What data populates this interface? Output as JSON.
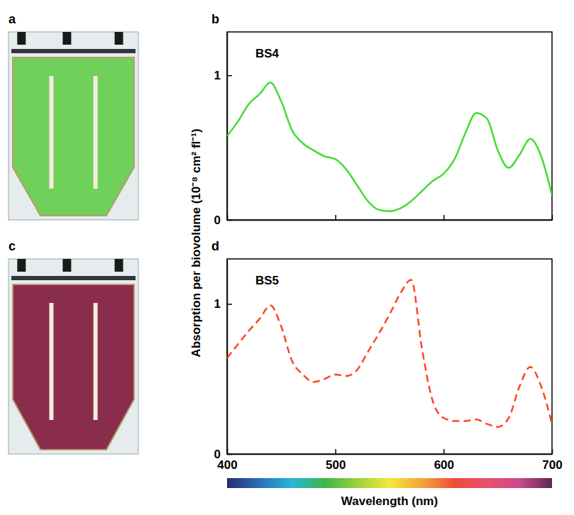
{
  "chart_data": [
    {
      "type": "line",
      "label": "b",
      "x": [
        400,
        410,
        420,
        430,
        440,
        450,
        460,
        470,
        480,
        490,
        500,
        510,
        520,
        530,
        540,
        550,
        560,
        570,
        580,
        590,
        600,
        610,
        620,
        630,
        640,
        650,
        660,
        670,
        680,
        690,
        700
      ],
      "series": [
        {
          "name": "BS4",
          "color": "#44dd33",
          "line_style": "solid",
          "values": [
            0.58,
            0.68,
            0.8,
            0.87,
            0.95,
            0.82,
            0.62,
            0.53,
            0.48,
            0.44,
            0.42,
            0.35,
            0.24,
            0.13,
            0.07,
            0.06,
            0.08,
            0.13,
            0.2,
            0.27,
            0.32,
            0.42,
            0.6,
            0.74,
            0.7,
            0.48,
            0.36,
            0.45,
            0.56,
            0.44,
            0.17
          ]
        }
      ],
      "xlim": [
        400,
        700
      ],
      "xticks": [
        400,
        500,
        600,
        700
      ],
      "ylim": [
        0,
        1.3
      ],
      "yticks": [
        0,
        1
      ],
      "tick_labels": "y"
    },
    {
      "type": "line",
      "label": "d",
      "x": [
        400,
        410,
        420,
        430,
        440,
        450,
        460,
        470,
        480,
        490,
        500,
        510,
        520,
        530,
        540,
        550,
        560,
        570,
        580,
        590,
        600,
        610,
        620,
        630,
        640,
        650,
        660,
        670,
        680,
        690,
        700
      ],
      "series": [
        {
          "name": "BS5",
          "color": "#ff4422",
          "line_style": "dashed",
          "values": [
            0.64,
            0.73,
            0.82,
            0.9,
            0.99,
            0.85,
            0.62,
            0.53,
            0.48,
            0.5,
            0.53,
            0.52,
            0.56,
            0.68,
            0.8,
            0.93,
            1.07,
            1.16,
            0.7,
            0.35,
            0.24,
            0.22,
            0.22,
            0.23,
            0.2,
            0.18,
            0.24,
            0.45,
            0.58,
            0.45,
            0.2
          ]
        }
      ],
      "xlim": [
        400,
        700
      ],
      "xticks": [
        400,
        500,
        600,
        700
      ],
      "ylim": [
        0,
        1.3
      ],
      "yticks": [
        0,
        1
      ]
    }
  ],
  "figure": {
    "ylabel": "Absorption per biovolume (10⁻⁸ cm² fl⁻¹)",
    "xlabel": "Wavelength (nm)",
    "photo_labels": [
      "a",
      "c"
    ]
  }
}
